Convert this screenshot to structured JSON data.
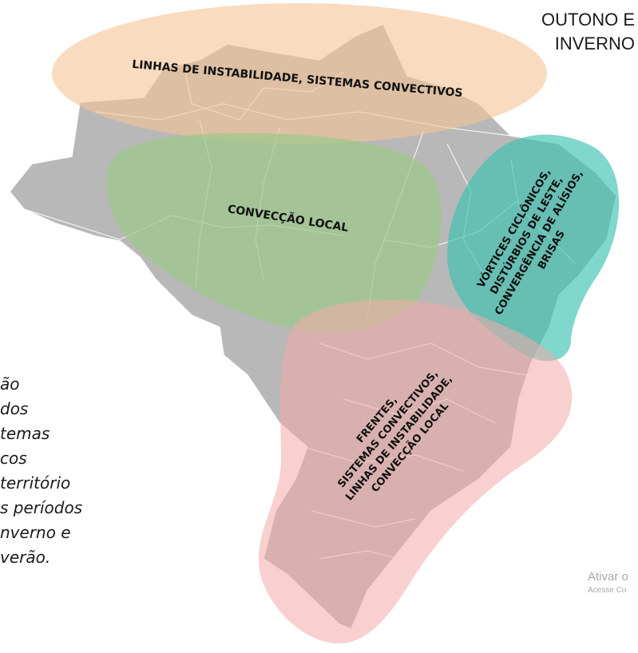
{
  "title": {
    "line1": "OUTONO E",
    "line2": "INVERNO"
  },
  "regions": {
    "north": {
      "text": "LINHAS DE INSTABILIDADE, SISTEMAS CONVECTIVOS",
      "color": "#f5c394"
    },
    "center": {
      "text": "CONVECÇÃO LOCAL",
      "color": "#9dc98a"
    },
    "northeast": {
      "lines": [
        "VÓRTICES CICLÔNICOS,",
        "DISTÚRBIOS DE LESTE,",
        "CONVERGÊNCIA DE ALÍSIOS,",
        "BRISAS"
      ],
      "color": "#3cc2b0"
    },
    "south": {
      "lines": [
        "FRENTES,",
        "SISTEMAS CONVECTIVOS,",
        "LINHAS DE INSTABILIDADE,",
        "CONVECÇÃO LOCAL"
      ],
      "color": "#f4a9a9"
    }
  },
  "map_color": "#b8b8b8",
  "side_text": [
    "ão",
    " dos",
    "temas",
    "cos",
    "território",
    "s períodos",
    "nverno e",
    "verão."
  ],
  "watermark": {
    "line1": "Ativar o",
    "line2": "Acesse Co"
  }
}
